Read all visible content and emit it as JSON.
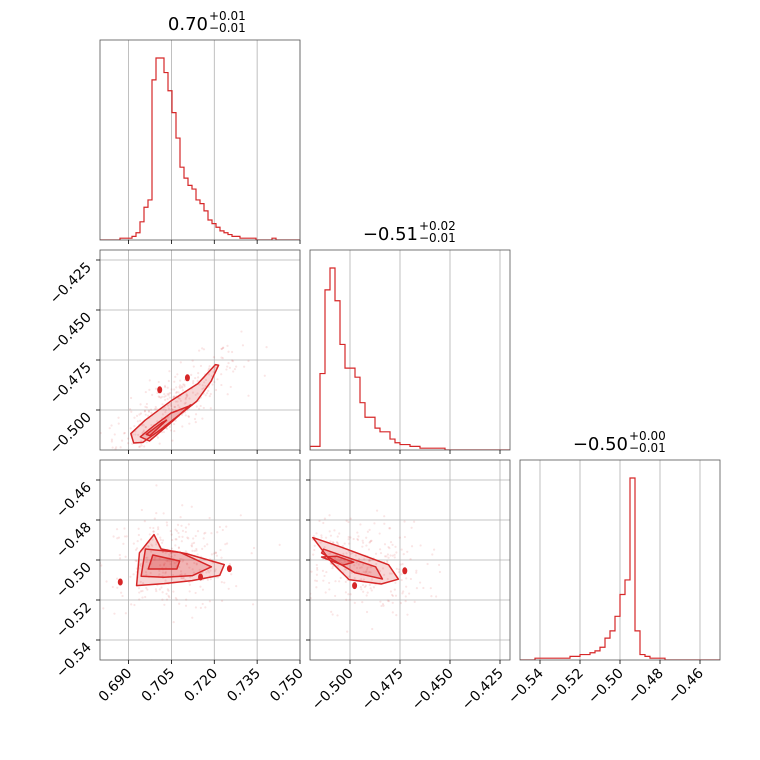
{
  "chart_data": {
    "type": "corner",
    "color": "#d62728",
    "parameters": [
      {
        "title": "0.70",
        "upper": "+0.01",
        "lower": "−0.01",
        "range": [
          0.68,
          0.75
        ],
        "ticks": [
          0.69,
          0.705,
          0.72,
          0.735,
          0.75
        ],
        "tick_labels": [
          "0.690",
          "0.705",
          "0.720",
          "0.735",
          "0.750"
        ]
      },
      {
        "title": "−0.51",
        "upper": "+0.02",
        "lower": "−0.01",
        "range": [
          -0.52,
          -0.42
        ],
        "ticks": [
          -0.5,
          -0.475,
          -0.45,
          -0.425
        ],
        "tick_labels": [
          "−0.500",
          "−0.475",
          "−0.450",
          "−0.425"
        ]
      },
      {
        "title": "−0.50",
        "upper": "+0.00",
        "lower": "−0.01",
        "range": [
          -0.55,
          -0.45
        ],
        "ticks": [
          -0.54,
          -0.52,
          -0.5,
          -0.48,
          -0.46
        ],
        "tick_labels": [
          "−0.54",
          "−0.52",
          "−0.50",
          "−0.48",
          "−0.46"
        ]
      }
    ],
    "histograms": [
      {
        "param": 0,
        "bin_start": 0.68,
        "bin_width": 0.0014,
        "counts": [
          0,
          0,
          0,
          0,
          0,
          1,
          1,
          1,
          2,
          4,
          10,
          18,
          22,
          88,
          100,
          100,
          92,
          82,
          70,
          56,
          40,
          34,
          30,
          28,
          22,
          20,
          16,
          11,
          9,
          7,
          5,
          4,
          3,
          2,
          2,
          1,
          1,
          1,
          1,
          0,
          0,
          0,
          0,
          1,
          0,
          0,
          0,
          0,
          0,
          0
        ]
      },
      {
        "param": 1,
        "bin_start": -0.52,
        "bin_width": 0.0025,
        "counts": [
          2,
          2,
          42,
          88,
          100,
          82,
          58,
          45,
          45,
          40,
          26,
          18,
          18,
          12,
          10,
          10,
          6,
          4,
          3,
          3,
          2,
          2,
          1,
          1,
          1,
          1,
          1,
          0,
          0,
          0,
          0,
          0,
          0,
          0,
          0,
          0,
          0,
          0,
          0,
          0
        ]
      },
      {
        "param": 2,
        "bin_start": -0.55,
        "bin_width": 0.0025,
        "counts": [
          0,
          0,
          0,
          1,
          1,
          1,
          1,
          1,
          1,
          1,
          2,
          2,
          3,
          3,
          4,
          5,
          7,
          12,
          16,
          24,
          36,
          44,
          100,
          16,
          3,
          2,
          1,
          1,
          1,
          0,
          0,
          0,
          0,
          0,
          0,
          0,
          0,
          0,
          0,
          0
        ]
      }
    ],
    "pairs": [
      {
        "x_param": 0,
        "y_param": 1,
        "level_1": [
          [
            0.695,
            -0.5162
          ],
          [
            0.7012,
            -0.5098
          ],
          [
            0.7138,
            -0.4957
          ],
          [
            0.7189,
            -0.4856
          ],
          [
            0.7215,
            -0.4776
          ],
          [
            0.7204,
            -0.4773
          ],
          [
            0.7142,
            -0.4869
          ],
          [
            0.7052,
            -0.4951
          ],
          [
            0.6958,
            -0.5051
          ],
          [
            0.6908,
            -0.5118
          ],
          [
            0.6918,
            -0.5165
          ],
          [
            0.695,
            -0.5162
          ]
        ],
        "level_2": [
          [
            0.6973,
            -0.5155
          ],
          [
            0.7054,
            -0.5056
          ],
          [
            0.7116,
            -0.4975
          ],
          [
            0.7122,
            -0.4975
          ],
          [
            0.7049,
            -0.5015
          ],
          [
            0.6987,
            -0.5081
          ],
          [
            0.6941,
            -0.5134
          ],
          [
            0.6973,
            -0.5155
          ]
        ],
        "level_3": [
          [
            0.6975,
            -0.5128
          ],
          [
            0.7033,
            -0.5051
          ],
          [
            0.7016,
            -0.5064
          ],
          [
            0.6962,
            -0.5122
          ],
          [
            0.6975,
            -0.5128
          ]
        ],
        "islands": [
          [
            0.7106,
            -0.4839
          ],
          [
            0.7009,
            -0.4899
          ]
        ],
        "scatter_center": [
          0.705,
          -0.498
        ],
        "scatter_slope": 0.95,
        "scatter_spread": [
          0.012,
          0.008
        ]
      },
      {
        "x_param": 0,
        "y_param": 2,
        "level_1": [
          [
            0.6928,
            -0.5128
          ],
          [
            0.6938,
            -0.4964
          ],
          [
            0.6989,
            -0.4873
          ],
          [
            0.7014,
            -0.4945
          ],
          [
            0.7102,
            -0.4968
          ],
          [
            0.7235,
            -0.5023
          ],
          [
            0.7219,
            -0.5077
          ],
          [
            0.7122,
            -0.5103
          ],
          [
            0.7024,
            -0.5118
          ],
          [
            0.6928,
            -0.5128
          ]
        ],
        "level_2": [
          [
            0.6944,
            -0.5081
          ],
          [
            0.6959,
            -0.4945
          ],
          [
            0.7081,
            -0.4962
          ],
          [
            0.719,
            -0.5034
          ],
          [
            0.7124,
            -0.5078
          ],
          [
            0.7024,
            -0.5086
          ],
          [
            0.6944,
            -0.5081
          ]
        ],
        "level_3": [
          [
            0.6969,
            -0.5045
          ],
          [
            0.6985,
            -0.4975
          ],
          [
            0.7079,
            -0.5005
          ],
          [
            0.7069,
            -0.5045
          ],
          [
            0.6969,
            -0.5045
          ]
        ],
        "islands": [
          [
            0.6871,
            -0.511
          ],
          [
            0.7152,
            -0.5085
          ],
          [
            0.7253,
            -0.5043
          ]
        ],
        "scatter_center": [
          0.705,
          -0.502
        ],
        "scatter_slope": 0,
        "scatter_spread": [
          0.012,
          0.012
        ]
      },
      {
        "x_param": 1,
        "y_param": 2,
        "level_1": [
          [
            -0.5093,
            -0.5011
          ],
          [
            -0.5186,
            -0.4888
          ],
          [
            -0.5043,
            -0.4936
          ],
          [
            -0.4807,
            -0.5024
          ],
          [
            -0.4758,
            -0.5096
          ],
          [
            -0.4844,
            -0.512
          ],
          [
            -0.5005,
            -0.5098
          ],
          [
            -0.5093,
            -0.5011
          ]
        ],
        "level_2": [
          [
            -0.5142,
            -0.4965
          ],
          [
            -0.5132,
            -0.4946
          ],
          [
            -0.5028,
            -0.4982
          ],
          [
            -0.4872,
            -0.5034
          ],
          [
            -0.4838,
            -0.5095
          ],
          [
            -0.4975,
            -0.5064
          ],
          [
            -0.5142,
            -0.4965
          ]
        ],
        "level_3": [
          [
            -0.5142,
            -0.4985
          ],
          [
            -0.5066,
            -0.4981
          ],
          [
            -0.4981,
            -0.5011
          ],
          [
            -0.5037,
            -0.5026
          ],
          [
            -0.5142,
            -0.4985
          ]
        ],
        "islands": [
          [
            -0.4977,
            -0.5128
          ],
          [
            -0.4726,
            -0.5054
          ]
        ],
        "scatter_center": [
          -0.498,
          -0.502
        ],
        "scatter_slope": -0.12,
        "scatter_spread": [
          0.018,
          0.012
        ]
      }
    ],
    "grid": true
  }
}
